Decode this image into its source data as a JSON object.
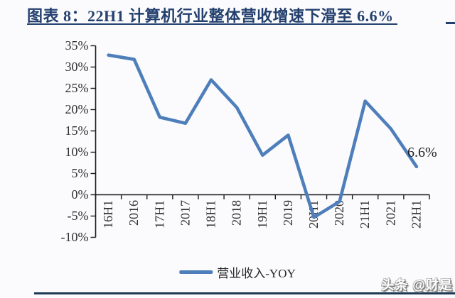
{
  "header": {
    "title": "图表 8：22H1 计算机行业整体营收增速下滑至 6.6%"
  },
  "chart_data": {
    "type": "line",
    "title": "图表 8：22H1 计算机行业整体营收增速下滑至 6.6%",
    "categories": [
      "16H1",
      "2016",
      "17H1",
      "2017",
      "18H1",
      "2018",
      "19H1",
      "2019",
      "20H1",
      "2020",
      "21H1",
      "2021",
      "22H1"
    ],
    "series": [
      {
        "name": "营业收入-YOY",
        "color": "#4e7fba",
        "values": [
          32.8,
          31.8,
          18.2,
          16.8,
          27.0,
          20.5,
          9.3,
          14.0,
          -5.3,
          -1.6,
          22.0,
          15.5,
          6.6
        ]
      }
    ],
    "xlabel": "",
    "ylabel": "",
    "ylim": [
      -10,
      35
    ],
    "y_ticks": [
      35,
      30,
      25,
      20,
      15,
      10,
      5,
      0,
      -5,
      -10
    ],
    "y_tick_labels": [
      "35%",
      "30%",
      "25%",
      "20%",
      "15%",
      "10%",
      "5%",
      "0%",
      "-5%",
      "-10%"
    ],
    "grid": false,
    "x_label_rotation": -90,
    "legend_position": "bottom",
    "annotation": {
      "text": "6.6%",
      "target": "22H1"
    }
  },
  "legend": {
    "label": "营业收入-YOY"
  },
  "watermark": {
    "text": "头条 @财是"
  },
  "colors": {
    "line": "#4e7fba",
    "title": "#24406e",
    "title_rule": "#24406e",
    "bottom_rule": "#1f3a54",
    "axis": "#1a1a1a",
    "label_text": "#2f2f2f",
    "background": "#fbfbfd"
  }
}
